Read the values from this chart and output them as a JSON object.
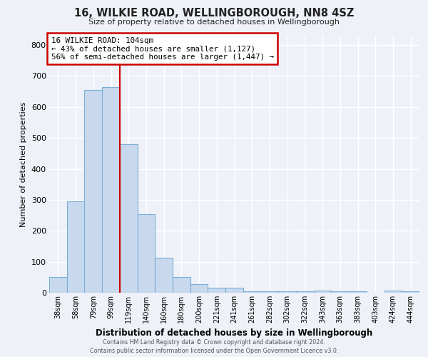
{
  "title": "16, WILKIE ROAD, WELLINGBOROUGH, NN8 4SZ",
  "subtitle": "Size of property relative to detached houses in Wellingborough",
  "xlabel": "Distribution of detached houses by size in Wellingborough",
  "ylabel": "Number of detached properties",
  "bar_labels": [
    "38sqm",
    "58sqm",
    "79sqm",
    "99sqm",
    "119sqm",
    "140sqm",
    "160sqm",
    "180sqm",
    "200sqm",
    "221sqm",
    "241sqm",
    "261sqm",
    "282sqm",
    "302sqm",
    "322sqm",
    "343sqm",
    "363sqm",
    "383sqm",
    "403sqm",
    "424sqm",
    "444sqm"
  ],
  "bar_heights": [
    50,
    295,
    655,
    665,
    480,
    253,
    113,
    50,
    28,
    15,
    15,
    5,
    5,
    5,
    5,
    8,
    5,
    5,
    0,
    8,
    5
  ],
  "bar_color": "#c9d9ed",
  "bar_edge_color": "#7aaed6",
  "background_color": "#eef2f8",
  "grid_color": "#ffffff",
  "vline_color": "#cc0000",
  "annotation_title": "16 WILKIE ROAD: 104sqm",
  "annotation_line1": "← 43% of detached houses are smaller (1,127)",
  "annotation_line2": "56% of semi-detached houses are larger (1,447) →",
  "annotation_box_color": "#ffffff",
  "annotation_box_edge": "#cc0000",
  "ylim": [
    0,
    830
  ],
  "yticks": [
    0,
    100,
    200,
    300,
    400,
    500,
    600,
    700,
    800
  ],
  "footer_line1": "Contains HM Land Registry data © Crown copyright and database right 2024.",
  "footer_line2": "Contains public sector information licensed under the Open Government Licence v3.0."
}
